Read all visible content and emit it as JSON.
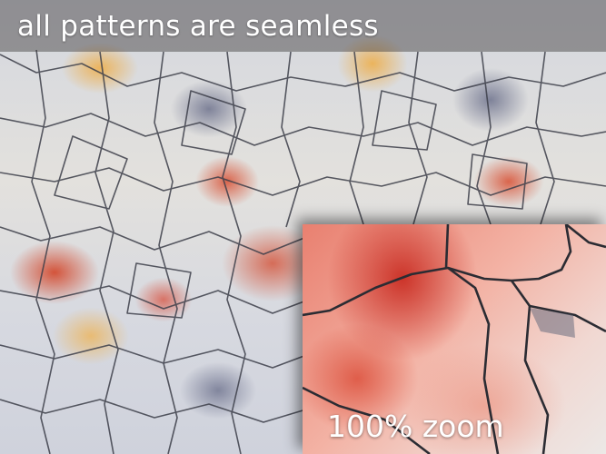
{
  "banner": {
    "title": "all patterns are seamless"
  },
  "inset": {
    "label": "100% zoom"
  }
}
